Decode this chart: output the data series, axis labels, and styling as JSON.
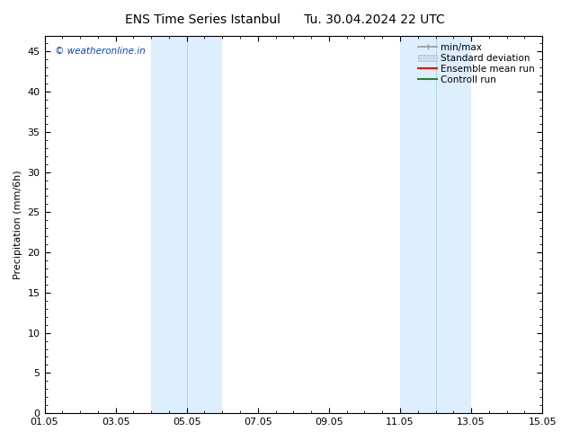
{
  "title_left": "ENS Time Series Istanbul",
  "title_right": "Tu. 30.04.2024 22 UTC",
  "ylabel": "Precipitation (mm/6h)",
  "xlim": [
    0,
    14
  ],
  "ylim": [
    0,
    47
  ],
  "yticks": [
    0,
    5,
    10,
    15,
    20,
    25,
    30,
    35,
    40,
    45
  ],
  "watermark": "© weatheronline.in",
  "background_color": "#ffffff",
  "plot_bg_color": "#ffffff",
  "shaded_bands": [
    {
      "x_start": 3.0,
      "x_end": 4.0,
      "color": "#ddeeff"
    },
    {
      "x_start": 4.0,
      "x_end": 5.0,
      "color": "#ddeeff"
    },
    {
      "x_start": 10.0,
      "x_end": 11.0,
      "color": "#ddeeff"
    },
    {
      "x_start": 11.0,
      "x_end": 12.0,
      "color": "#ddeeff"
    }
  ],
  "band_dividers": [
    4.0,
    11.0
  ],
  "legend_items": [
    {
      "label": "min/max",
      "color": "#999999",
      "lw": 1.2
    },
    {
      "label": "Standard deviation",
      "color": "#ccddee",
      "lw": 8
    },
    {
      "label": "Ensemble mean run",
      "color": "#ff0000",
      "lw": 1.5
    },
    {
      "label": "Controll run",
      "color": "#228822",
      "lw": 1.5
    }
  ],
  "xtick_labels": [
    "01.05",
    "03.05",
    "05.05",
    "07.05",
    "09.05",
    "11.05",
    "13.05",
    "15.05"
  ],
  "xtick_positions": [
    0,
    2,
    4,
    6,
    8,
    10,
    12,
    14
  ],
  "title_fontsize": 10,
  "label_fontsize": 8,
  "tick_fontsize": 8,
  "legend_fontsize": 7.5,
  "watermark_fontsize": 7.5
}
